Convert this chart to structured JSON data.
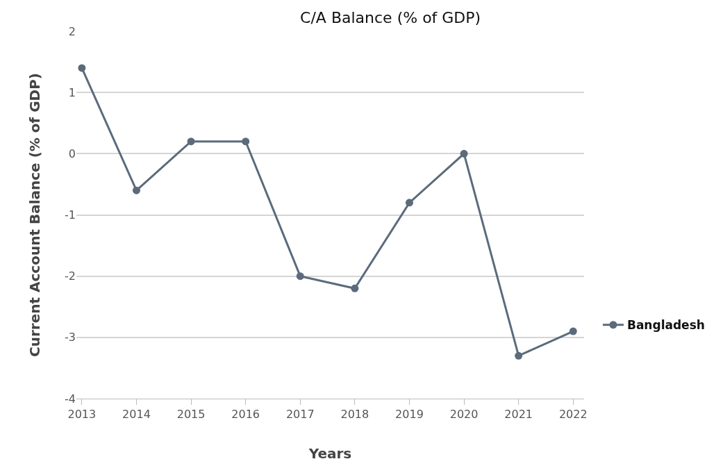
{
  "chart_data": {
    "type": "line",
    "title": "C/A Balance (% of GDP)",
    "xlabel": "Years",
    "ylabel": "Current Account Balance (% of GDP)",
    "categories": [
      "2013",
      "2014",
      "2015",
      "2016",
      "2017",
      "2018",
      "2019",
      "2020",
      "2021",
      "2022"
    ],
    "series": [
      {
        "name": "Bangladesh",
        "color": "#5b6b7c",
        "values": [
          1.4,
          -0.6,
          0.2,
          0.2,
          -2.0,
          -2.2,
          -0.8,
          0.0,
          -3.3,
          -2.9
        ]
      }
    ],
    "ylim": [
      -4,
      2
    ],
    "yticks": [
      -4,
      -3,
      -2,
      -1,
      0,
      1,
      2
    ],
    "grid": "y",
    "legend": "right",
    "marker": "circle",
    "line_style": "solid"
  }
}
